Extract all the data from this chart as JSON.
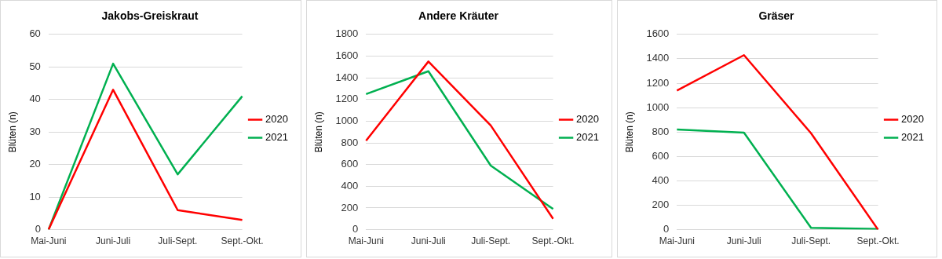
{
  "chart_data": [
    {
      "type": "line",
      "title": "Jakobs-Greiskraut",
      "ylabel": "Blüten (n)",
      "categories": [
        "Mai-Juni",
        "Juni-Juli",
        "Juli-Sept.",
        "Sept.-Okt."
      ],
      "ylim": [
        0,
        60
      ],
      "yticks": [
        0,
        10,
        20,
        30,
        40,
        50,
        60
      ],
      "grid": "y",
      "legend": "right",
      "marker": "none",
      "series": [
        {
          "name": "2020",
          "color": "#ff0000",
          "values": [
            0,
            43,
            6,
            3
          ]
        },
        {
          "name": "2021",
          "color": "#00b050",
          "values": [
            0,
            51,
            17,
            41
          ]
        }
      ]
    },
    {
      "type": "line",
      "title": "Andere Kräuter",
      "ylabel": "Blüten (n)",
      "categories": [
        "Mai-Juni",
        "Juni-Juli",
        "Juli-Sept.",
        "Sept.-Okt."
      ],
      "ylim": [
        0,
        1800
      ],
      "yticks": [
        0,
        200,
        400,
        600,
        800,
        1000,
        1200,
        1400,
        1600,
        1800
      ],
      "grid": "y",
      "legend": "right",
      "marker": "none",
      "series": [
        {
          "name": "2020",
          "color": "#ff0000",
          "values": [
            820,
            1550,
            960,
            100
          ]
        },
        {
          "name": "2021",
          "color": "#00b050",
          "values": [
            1250,
            1460,
            590,
            190
          ]
        }
      ]
    },
    {
      "type": "line",
      "title": "Gräser",
      "ylabel": "Blüten (n)",
      "categories": [
        "Mai-Juni",
        "Juni-Juli",
        "Juli-Sept.",
        "Sept.-Okt."
      ],
      "ylim": [
        0,
        1600
      ],
      "yticks": [
        0,
        200,
        400,
        600,
        800,
        1000,
        1200,
        1400,
        1600
      ],
      "grid": "y",
      "legend": "right",
      "marker": "none",
      "series": [
        {
          "name": "2020",
          "color": "#ff0000",
          "values": [
            1140,
            1430,
            790,
            0
          ]
        },
        {
          "name": "2021",
          "color": "#00b050",
          "values": [
            820,
            795,
            15,
            5
          ]
        }
      ]
    }
  ]
}
